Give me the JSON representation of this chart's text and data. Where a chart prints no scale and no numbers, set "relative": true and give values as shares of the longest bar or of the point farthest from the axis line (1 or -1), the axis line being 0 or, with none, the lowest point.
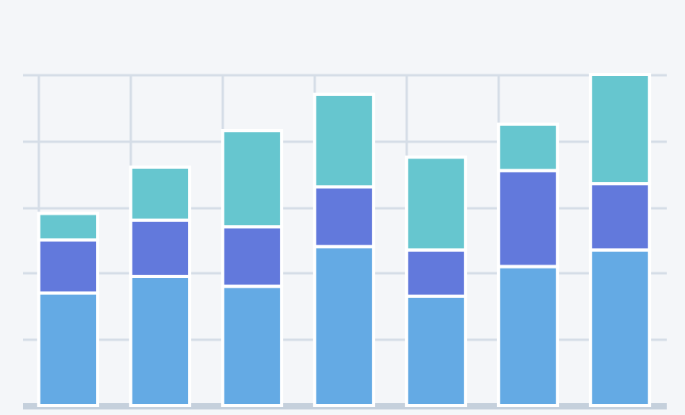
{
  "chart_data": {
    "type": "bar",
    "stacked": true,
    "relative": true,
    "grid": true,
    "categories": [
      null,
      null,
      null,
      null,
      null,
      null,
      null
    ],
    "series": [
      {
        "color": "#64aae4",
        "values": [
          0.34,
          0.39,
          0.36,
          0.48,
          0.33,
          0.42,
          0.47
        ]
      },
      {
        "color": "#6279dc",
        "values": [
          0.16,
          0.17,
          0.18,
          0.18,
          0.14,
          0.29,
          0.2
        ]
      },
      {
        "color": "#66c6cf",
        "values": [
          0.08,
          0.16,
          0.29,
          0.28,
          0.28,
          0.14,
          0.33
        ]
      }
    ]
  }
}
